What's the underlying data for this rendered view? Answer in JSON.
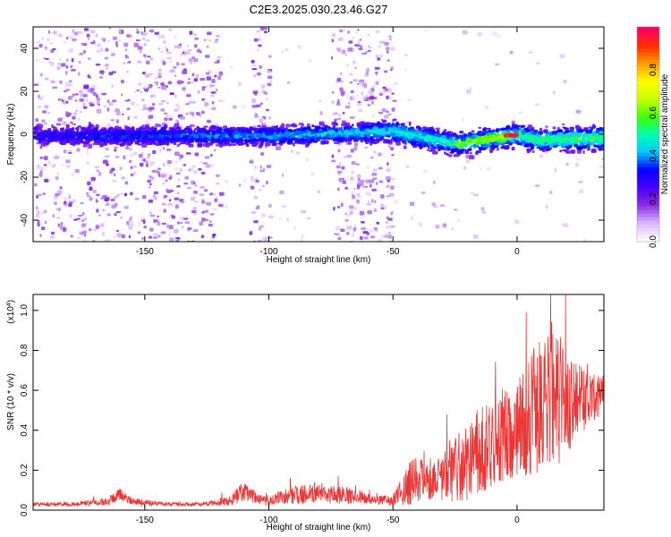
{
  "figure": {
    "title": "C2E3.2025.030.23.46.G27"
  },
  "chart_data": [
    {
      "type": "heatmap",
      "name": "spectrogram",
      "xlabel": "Height of straight line (km)",
      "ylabel": "Frequency (Hz)",
      "xlim": [
        -195,
        35
      ],
      "ylim": [
        -50,
        50
      ],
      "x_ticks": [
        -150,
        -100,
        -50,
        0
      ],
      "x_tick_labels": [
        "-150",
        "-100",
        "-50",
        "0"
      ],
      "y_ticks": [
        -40,
        -20,
        0,
        20,
        40
      ],
      "y_tick_labels": [
        "-40",
        "-20",
        "0",
        "20",
        "40"
      ],
      "colorbar": {
        "label": "Normalized spectral amplitude",
        "range": [
          0,
          1
        ],
        "ticks": [
          0.0,
          0.2,
          0.4,
          0.6,
          0.8
        ],
        "tick_labels": [
          "0.0",
          "0.2",
          "0.4",
          "0.6",
          "0.8"
        ],
        "colors": [
          "#ffffff",
          "#d9b3ff",
          "#8a2be2",
          "#4b00ff",
          "#0000ff",
          "#00c8ff",
          "#00ffb0",
          "#40ff00",
          "#c8ff00",
          "#ffff00",
          "#ffa000",
          "#ff3000",
          "#ff0060"
        ]
      },
      "features": {
        "noise_regions_km": [
          [
            -195,
            -120
          ],
          [
            -108,
            -100
          ],
          [
            -75,
            -50
          ]
        ],
        "center_frequency_trend": [
          {
            "x": -190,
            "y": 0
          },
          {
            "x": -100,
            "y": 0
          },
          {
            "x": -50,
            "y": 2
          },
          {
            "x": -25,
            "y": -4
          },
          {
            "x": -15,
            "y": -2
          },
          {
            "x": -3,
            "y": 0
          },
          {
            "x": 0,
            "y": 0
          },
          {
            "x": 8,
            "y": -2
          },
          {
            "x": 35,
            "y": -1
          }
        ],
        "peak_amplitude_location": {
          "x": -3,
          "y": 0
        }
      }
    },
    {
      "type": "line",
      "name": "snr",
      "xlabel": "Height of straight line (km)",
      "ylabel": "SNR (10 * v/v)",
      "multiplier": "(x10",
      "multiplier_exponent": "4",
      "multiplier_close": ")",
      "xlim": [
        -195,
        35
      ],
      "ylim": [
        0,
        1.08
      ],
      "x_ticks": [
        -150,
        -100,
        -50,
        0
      ],
      "x_tick_labels": [
        "-150",
        "-100",
        "-50",
        "0"
      ],
      "y_ticks": [
        0.0,
        0.2,
        0.4,
        0.6,
        0.8,
        1.0
      ],
      "y_tick_labels": [
        "0.0",
        "0.2",
        "0.4",
        "0.6",
        "0.8",
        "1.0"
      ],
      "color": "#ee3333",
      "series": [
        {
          "x": [
            -195,
            -180,
            -165,
            -160,
            -155,
            -140,
            -125,
            -115,
            -110,
            -105,
            -100,
            -95,
            -85,
            -75,
            -65,
            -58,
            -50,
            -45,
            -40,
            -35,
            -30,
            -25,
            -20,
            -15,
            -10,
            -5,
            0,
            5,
            10,
            15,
            20,
            25,
            30,
            35
          ],
          "y": [
            0.03,
            0.03,
            0.04,
            0.08,
            0.04,
            0.03,
            0.03,
            0.05,
            0.1,
            0.06,
            0.04,
            0.07,
            0.08,
            0.08,
            0.07,
            0.05,
            0.05,
            0.12,
            0.16,
            0.13,
            0.17,
            0.22,
            0.25,
            0.3,
            0.33,
            0.38,
            0.4,
            0.45,
            0.55,
            0.6,
            0.52,
            0.55,
            0.56,
            0.58
          ],
          "spread": [
            0.01,
            0.01,
            0.02,
            0.03,
            0.02,
            0.01,
            0.01,
            0.03,
            0.05,
            0.03,
            0.02,
            0.04,
            0.05,
            0.05,
            0.04,
            0.02,
            0.03,
            0.1,
            0.12,
            0.08,
            0.12,
            0.18,
            0.2,
            0.22,
            0.22,
            0.25,
            0.25,
            0.3,
            0.38,
            0.36,
            0.3,
            0.18,
            0.12,
            0.1
          ]
        }
      ]
    }
  ]
}
